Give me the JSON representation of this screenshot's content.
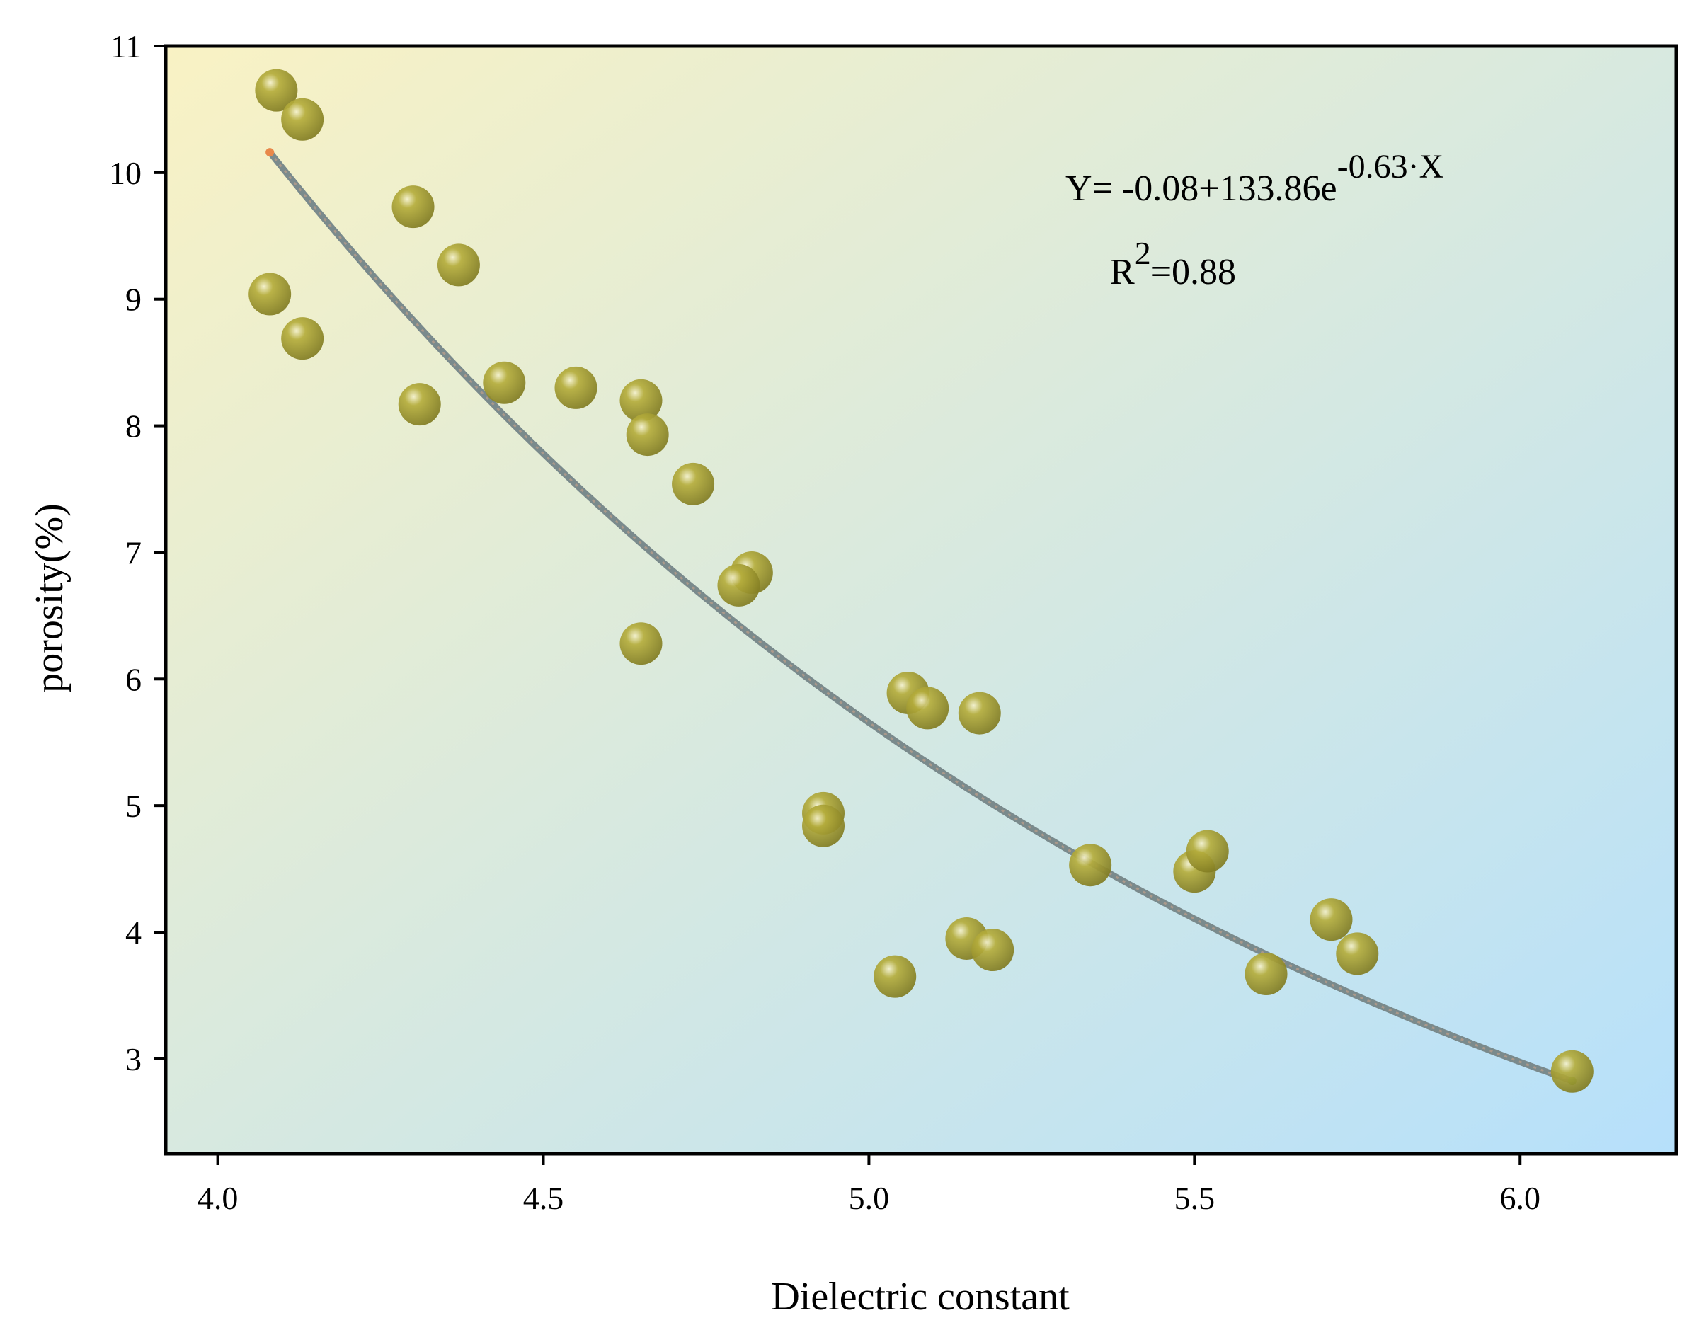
{
  "chart_data": {
    "type": "scatter",
    "title": "",
    "xlabel": "Dielectric constant",
    "ylabel": "porosity(%)",
    "xlim": [
      3.92,
      6.24
    ],
    "ylim": [
      2.25,
      11
    ],
    "x_ticks": [
      4.0,
      4.5,
      5.0,
      5.5,
      6.0
    ],
    "x_tick_labels": [
      "4.0",
      "4.5",
      "5.0",
      "5.5",
      "6.0"
    ],
    "y_ticks": [
      3,
      4,
      5,
      6,
      7,
      8,
      9,
      10,
      11
    ],
    "y_tick_labels": [
      "3",
      "4",
      "5",
      "6",
      "7",
      "8",
      "9",
      "10",
      "11"
    ],
    "grid": false,
    "points": [
      {
        "x": 4.09,
        "y": 10.65
      },
      {
        "x": 4.13,
        "y": 10.42
      },
      {
        "x": 4.08,
        "y": 9.04
      },
      {
        "x": 4.13,
        "y": 8.69
      },
      {
        "x": 4.3,
        "y": 9.73
      },
      {
        "x": 4.37,
        "y": 9.27
      },
      {
        "x": 4.31,
        "y": 8.17
      },
      {
        "x": 4.44,
        "y": 8.34
      },
      {
        "x": 4.55,
        "y": 8.3
      },
      {
        "x": 4.65,
        "y": 8.2
      },
      {
        "x": 4.66,
        "y": 7.93
      },
      {
        "x": 4.73,
        "y": 7.54
      },
      {
        "x": 4.82,
        "y": 6.84
      },
      {
        "x": 4.8,
        "y": 6.74
      },
      {
        "x": 4.65,
        "y": 6.28
      },
      {
        "x": 4.93,
        "y": 4.94
      },
      {
        "x": 4.93,
        "y": 4.84
      },
      {
        "x": 5.06,
        "y": 5.89
      },
      {
        "x": 5.09,
        "y": 5.77
      },
      {
        "x": 5.17,
        "y": 5.73
      },
      {
        "x": 5.04,
        "y": 3.65
      },
      {
        "x": 5.15,
        "y": 3.95
      },
      {
        "x": 5.19,
        "y": 3.86
      },
      {
        "x": 5.34,
        "y": 4.53
      },
      {
        "x": 5.5,
        "y": 4.48
      },
      {
        "x": 5.52,
        "y": 4.64
      },
      {
        "x": 5.61,
        "y": 3.67
      },
      {
        "x": 5.71,
        "y": 4.1
      },
      {
        "x": 5.75,
        "y": 3.83
      },
      {
        "x": 6.08,
        "y": 2.9
      }
    ],
    "fit": {
      "a": -0.08,
      "b": 133.86,
      "c": -0.63,
      "x_start": 4.08,
      "x_end": 6.08
    },
    "equation": {
      "prefix": "Y= -0.08+133.86e",
      "exponent": "-0.63·X"
    },
    "r2": {
      "prefix": "R",
      "exponent": "2",
      "suffix": "=0.88"
    },
    "colors": {
      "bg_top_left": "#f9f2c4",
      "bg_bottom_right": "#b6e0fb",
      "marker": "#b5ad3c",
      "marker_dark": "#7d7820",
      "marker_highlight": "#f4f1cd",
      "fit_line": "#7a8a8c",
      "fit_start": "#e8884a",
      "fit_end": "#5aa84c"
    }
  }
}
